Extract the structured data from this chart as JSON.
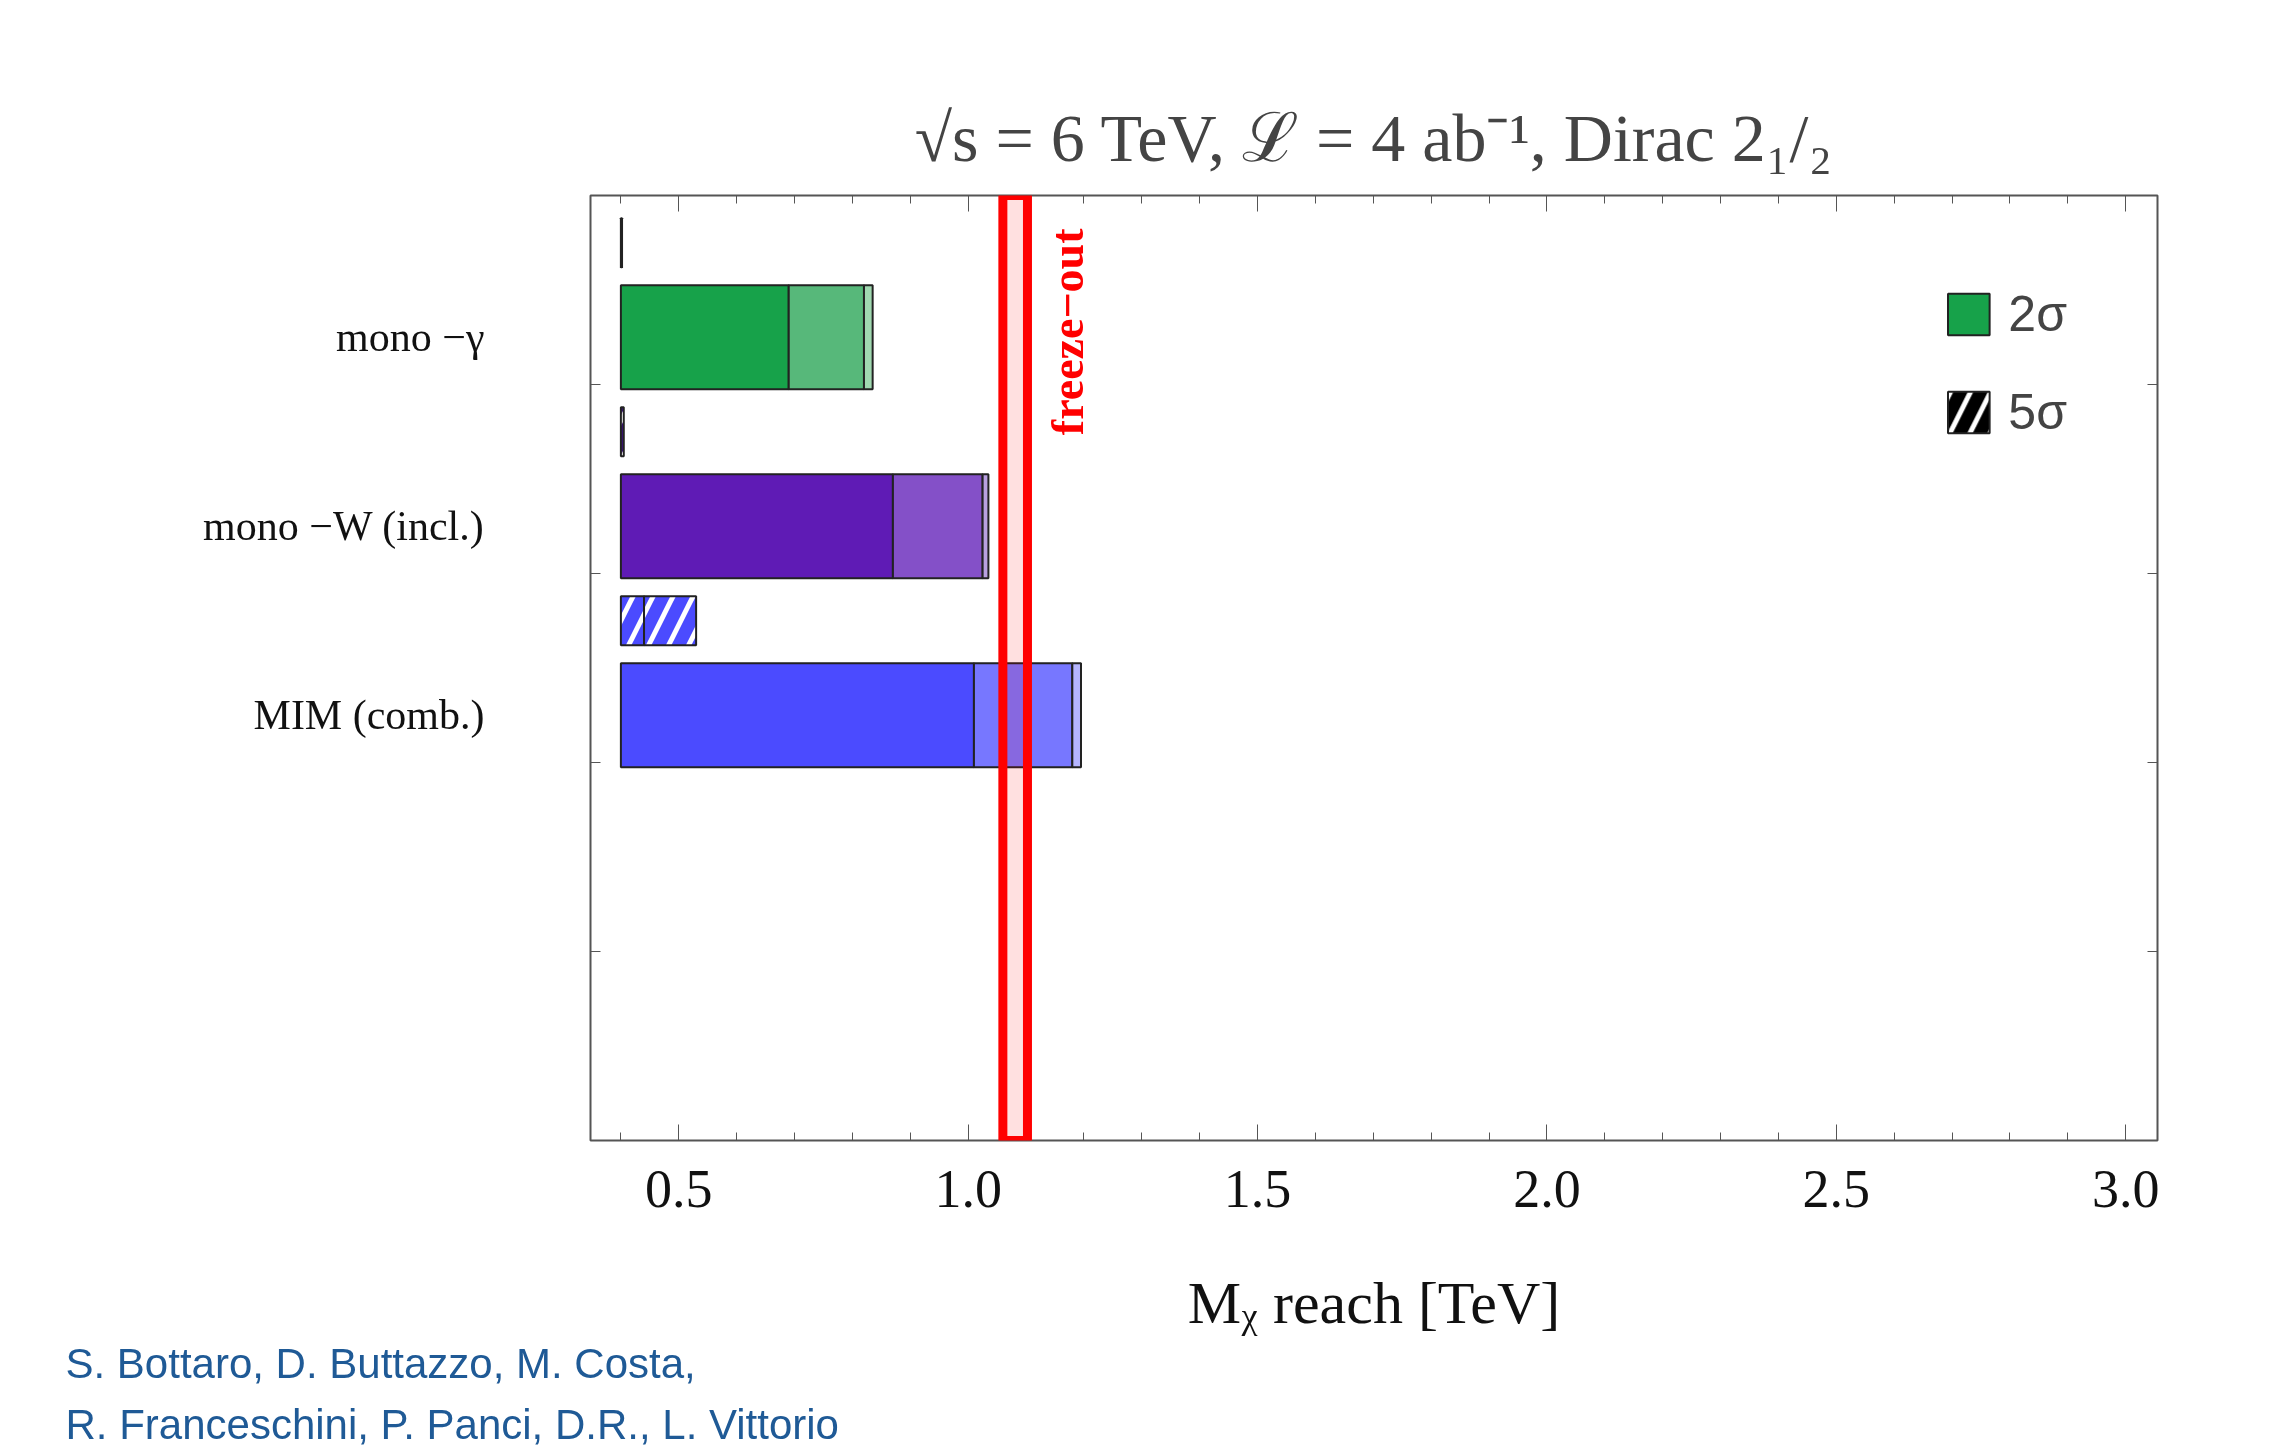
{
  "chart_data": {
    "type": "bar",
    "orientation": "horizontal",
    "title": "√s = 6 TeV, ℒ = 4 ab⁻¹, Dirac 2₁/₂",
    "xlabel": "Mᵪ reach [TeV]",
    "categories": [
      null,
      "mono −γ",
      null,
      "mono −W (incl.)",
      null,
      "MIM (comb.)",
      null,
      null,
      null,
      null
    ],
    "series": [
      {
        "name": "5σ",
        "base": [
          0.4,
          null,
          0.4,
          null,
          0.4,
          null,
          null,
          null,
          null,
          null
        ],
        "colors": [
          "#000000",
          null,
          "#3a1080",
          null,
          "#4b4bff",
          null,
          null,
          null,
          null,
          null
        ],
        "values": [
          0.002,
          null,
          0.005,
          null,
          0.04,
          null,
          null,
          null,
          null,
          null
        ]
      },
      {
        "base": [
          null,
          null,
          null,
          null,
          0.44,
          null,
          null,
          null,
          null,
          null
        ],
        "colors": [
          null,
          null,
          null,
          null,
          "#4b4bff",
          null,
          null,
          null,
          null,
          null
        ],
        "values": [
          null,
          null,
          null,
          null,
          0.09,
          null,
          null,
          null,
          null,
          null
        ]
      },
      {
        "name": "2σ",
        "base": [
          null,
          0.4,
          null,
          0.4,
          null,
          0.4,
          null,
          null,
          null,
          null
        ],
        "colors": [
          null,
          "#17a24a",
          null,
          "#5f1bb5",
          null,
          "#4b4bff",
          null,
          null,
          null,
          null
        ],
        "values": [
          null,
          0.29,
          null,
          0.47,
          null,
          0.61,
          null,
          null,
          null,
          null
        ]
      },
      {
        "base": [
          null,
          0.69,
          null,
          0.87,
          null,
          1.01,
          null,
          null,
          null,
          null
        ],
        "colors": [
          null,
          "#57b87a",
          null,
          "#8450c8",
          null,
          "#7777ff",
          null,
          null,
          null,
          null
        ],
        "values": [
          null,
          0.13,
          null,
          0.155,
          null,
          0.17,
          null,
          null,
          null,
          null
        ]
      },
      {
        "base": [
          null,
          0.82,
          null,
          1.025,
          null,
          1.18,
          null,
          null,
          null,
          null
        ],
        "colors": [
          null,
          "#a0d8b0",
          null,
          "#b8a0e0",
          null,
          "#b5b5ff",
          null,
          null,
          null,
          null
        ],
        "values": [
          null,
          0.015,
          null,
          0.01,
          null,
          0.015,
          null,
          null,
          null,
          null
        ]
      }
    ],
    "xlim": [
      0.3475,
      3.055
    ],
    "xticks": [
      {
        "value": 0.4,
        "label": null
      },
      0.5,
      {
        "value": 0.6,
        "label": null
      },
      {
        "value": 0.7,
        "label": null
      },
      {
        "value": 0.8,
        "label": null
      },
      {
        "value": 0.9,
        "label": null
      },
      {
        "value": 1,
        "label": "1.0"
      },
      {
        "value": 1.1,
        "label": null
      },
      {
        "value": 1.2,
        "label": null
      },
      {
        "value": 1.3,
        "label": null
      },
      {
        "value": 1.4,
        "label": null
      },
      1.5,
      {
        "value": 1.6,
        "label": null
      },
      {
        "value": 1.7,
        "label": null
      },
      {
        "value": 1.8,
        "label": null
      },
      {
        "value": 1.9,
        "label": null
      },
      {
        "value": 2,
        "label": "2.0"
      },
      {
        "value": 2.1,
        "label": null
      },
      {
        "value": 2.2,
        "label": null
      },
      {
        "value": 2.3,
        "label": null
      },
      {
        "value": 2.4,
        "label": null
      },
      2.5,
      {
        "value": 2.6,
        "label": null
      },
      {
        "value": 2.7,
        "label": null
      },
      {
        "value": 2.8,
        "label": null
      },
      {
        "value": 2.9,
        "label": null
      },
      {
        "value": 3,
        "label": "3.0"
      }
    ],
    "bands": [
      {
        "axis": "x",
        "from": 1.06,
        "to": 1.1025,
        "label": "freeze−out",
        "color": "#ff0000"
      }
    ],
    "legend": "top right",
    "grid": false,
    "annotations": [
      "S. Bottaro, D. Buttazzo, M. Costa,\nR. Franceschini, P. Panci, D.R., L. Vittorio"
    ]
  }
}
